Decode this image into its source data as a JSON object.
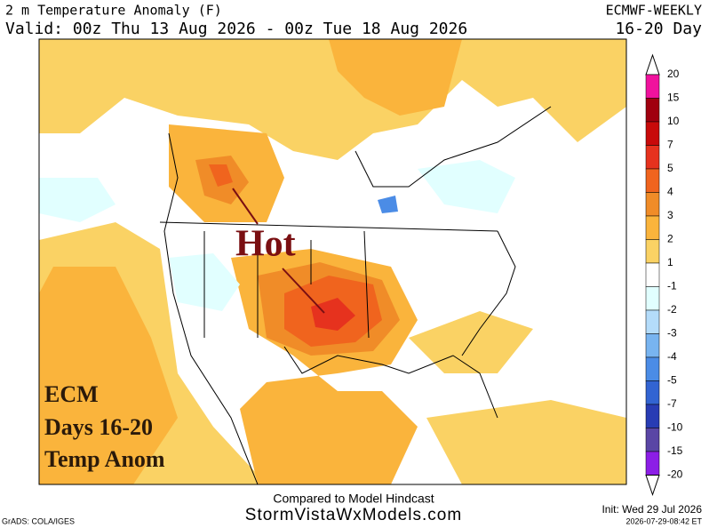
{
  "header": {
    "title": "2 m Temperature Anomaly (F)",
    "model": "ECMWF-WEEKLY",
    "valid": "Valid: 00z Thu 13 Aug 2026 - 00z Tue 18 Aug 2026",
    "range": "16-20 Day"
  },
  "annotations": {
    "hot": "Hot",
    "box": [
      "ECM",
      "Days 16-20",
      "Temp Anom"
    ]
  },
  "footer": {
    "compared": "Compared to Model Hindcast",
    "site": "StormVistaWxModels.com",
    "init": "Init: Wed 29 Jul 2026",
    "stamp": "2026-07-29-08:42 ET",
    "grads": "GrADS: COLA/IGES"
  },
  "colorbar": {
    "labels": [
      20,
      15,
      10,
      7,
      5,
      4,
      3,
      2,
      1,
      -1,
      -2,
      -3,
      -4,
      -5,
      -7,
      -10,
      -15,
      -20
    ],
    "colors": [
      "#f0129d",
      "#a0000f",
      "#c80a0a",
      "#e6321e",
      "#f0641e",
      "#f08c28",
      "#fab43c",
      "#fad264",
      "#ffffff",
      "#e1ffff",
      "#b4dcfa",
      "#78b4f0",
      "#4b8ce6",
      "#3264d2",
      "#283cb4",
      "#5a46a5",
      "#8c1ee6"
    ]
  }
}
